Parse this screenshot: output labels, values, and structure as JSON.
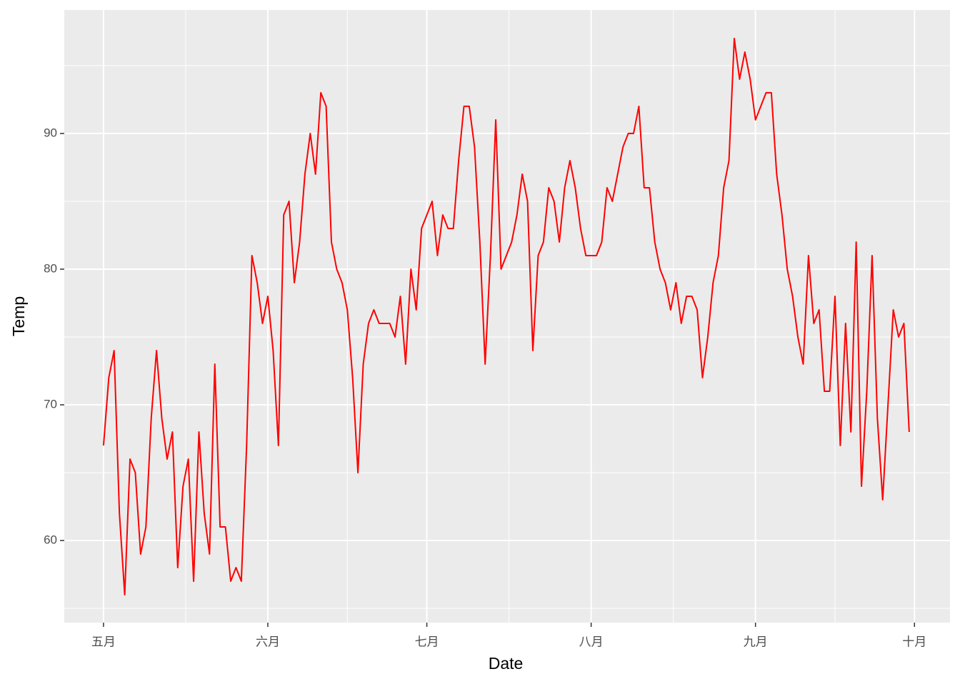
{
  "chart_data": {
    "type": "line",
    "x_label": "Date",
    "y_label": "Temp",
    "color": "#ff0000",
    "grid": true,
    "x": [
      0,
      1,
      2,
      3,
      4,
      5,
      6,
      7,
      8,
      9,
      10,
      11,
      12,
      13,
      14,
      15,
      16,
      17,
      18,
      19,
      20,
      21,
      22,
      23,
      24,
      25,
      26,
      27,
      28,
      29,
      30,
      31,
      32,
      33,
      34,
      35,
      36,
      37,
      38,
      39,
      40,
      41,
      42,
      43,
      44,
      45,
      46,
      47,
      48,
      49,
      50,
      51,
      52,
      53,
      54,
      55,
      56,
      57,
      58,
      59,
      60,
      61,
      62,
      63,
      64,
      65,
      66,
      67,
      68,
      69,
      70,
      71,
      72,
      73,
      74,
      75,
      76,
      77,
      78,
      79,
      80,
      81,
      82,
      83,
      84,
      85,
      86,
      87,
      88,
      89,
      90,
      91,
      92,
      93,
      94,
      95,
      96,
      97,
      98,
      99,
      100,
      101,
      102,
      103,
      104,
      105,
      106,
      107,
      108,
      109,
      110,
      111,
      112,
      113,
      114,
      115,
      116,
      117,
      118,
      119,
      120,
      121,
      122,
      123,
      124,
      125,
      126,
      127,
      128,
      129,
      130,
      131,
      132,
      133,
      134,
      135,
      136,
      137,
      138,
      139,
      140,
      141,
      142,
      143,
      144,
      145,
      146,
      147,
      148,
      149,
      150,
      151,
      152
    ],
    "values": [
      67,
      72,
      74,
      62,
      56,
      66,
      65,
      59,
      61,
      69,
      74,
      69,
      66,
      68,
      58,
      64,
      66,
      57,
      68,
      62,
      59,
      73,
      61,
      61,
      57,
      58,
      57,
      67,
      81,
      79,
      76,
      78,
      74,
      67,
      84,
      85,
      79,
      82,
      87,
      90,
      87,
      93,
      92,
      82,
      80,
      79,
      77,
      72,
      65,
      73,
      76,
      77,
      76,
      76,
      76,
      75,
      78,
      73,
      80,
      77,
      83,
      84,
      85,
      81,
      84,
      83,
      83,
      88,
      92,
      92,
      89,
      82,
      73,
      81,
      91,
      80,
      81,
      82,
      84,
      87,
      85,
      74,
      81,
      82,
      86,
      85,
      82,
      86,
      88,
      86,
      83,
      81,
      81,
      81,
      82,
      86,
      85,
      87,
      89,
      90,
      90,
      92,
      86,
      86,
      82,
      80,
      79,
      77,
      79,
      76,
      78,
      78,
      77,
      72,
      75,
      79,
      81,
      86,
      88,
      97,
      94,
      96,
      94,
      91,
      92,
      93,
      93,
      87,
      84,
      80,
      78,
      75,
      73,
      81,
      76,
      77,
      71,
      71,
      78,
      67,
      76,
      68,
      82,
      64,
      71,
      81,
      69,
      63,
      70,
      77,
      75,
      76,
      68
    ],
    "xlim": [
      -7.4,
      159.7
    ],
    "xticks": [
      {
        "value": 0,
        "label": "五月"
      },
      {
        "value": 31,
        "label": "六月"
      },
      {
        "value": 61,
        "label": "七月"
      },
      {
        "value": 92,
        "label": "八月"
      },
      {
        "value": 123,
        "label": "九月"
      },
      {
        "value": 153,
        "label": "十月"
      }
    ],
    "ylim": [
      53.95,
      99.1
    ],
    "yticks": [
      60,
      70,
      80,
      90
    ]
  }
}
